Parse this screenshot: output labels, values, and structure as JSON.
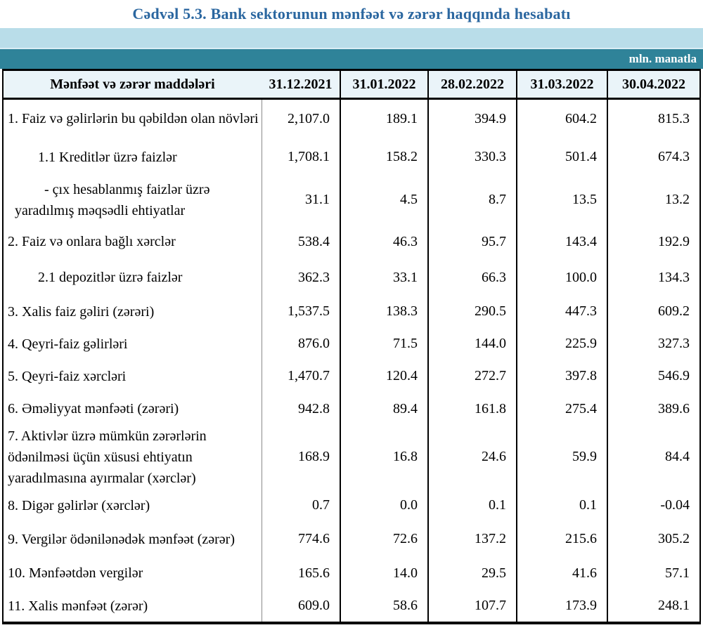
{
  "title": "Cədvəl 5.3. Bank sektorunun mənfəət və zərər haqqında hesabatı",
  "unit_label": "mln. manatla",
  "colors": {
    "title_blue": "#2b67a0",
    "band_light_blue": "#b9dde9",
    "band_teal": "#2f8399",
    "header_row_bg": "#eaf4f9"
  },
  "table": {
    "columns": [
      "Mənfəət və zərər maddələri",
      "31.12.2021",
      "31.01.2022",
      "28.02.2022",
      "31.03.2022",
      "30.04.2022"
    ],
    "rows": [
      {
        "label": "1. Faiz və gəlirlərin bu qəbildən olan növləri",
        "indent": "none",
        "values": [
          "2,107.0",
          "189.1",
          "394.9",
          "604.2",
          "815.3"
        ]
      },
      {
        "label": "1.1 Kreditlər üzrə faizlər",
        "indent": "sub",
        "values": [
          "1,708.1",
          "158.2",
          "330.3",
          "501.4",
          "674.3"
        ]
      },
      {
        "label": [
          "- çıx hesablanmış faizlər üzrə",
          "yaradılmış məqsədli ehtiyatlar"
        ],
        "indent": "hang",
        "values": [
          "31.1",
          "4.5",
          "8.7",
          "13.5",
          "13.2"
        ]
      },
      {
        "label": "2. Faiz və onlara bağlı xərclər",
        "indent": "none",
        "values": [
          "538.4",
          "46.3",
          "95.7",
          "143.4",
          "192.9"
        ]
      },
      {
        "label": "2.1 depozitlər üzrə faizlər",
        "indent": "sub",
        "values": [
          "362.3",
          "33.1",
          "66.3",
          "100.0",
          "134.3"
        ]
      },
      {
        "label": "3. Xalis faiz gəliri (zərəri)",
        "indent": "none",
        "values": [
          "1,537.5",
          "138.3",
          "290.5",
          "447.3",
          "609.2"
        ]
      },
      {
        "label": "4. Qeyri-faiz gəlirləri",
        "indent": "none",
        "values": [
          "876.0",
          "71.5",
          "144.0",
          "225.9",
          "327.3"
        ]
      },
      {
        "label": "5. Qeyri-faiz xərcləri",
        "indent": "none",
        "values": [
          "1,470.7",
          "120.4",
          "272.7",
          "397.8",
          "546.9"
        ]
      },
      {
        "label": "6. Əməliyyat mənfəəti (zərəri)",
        "indent": "none",
        "values": [
          "942.8",
          "89.4",
          "161.8",
          "275.4",
          "389.6"
        ]
      },
      {
        "label": [
          "7. Aktivlər üzrə mümkün zərərlərin",
          "ödənilməsi üçün xüsusi ehtiyatın",
          "yaradılmasına ayırmalar (xərclər)"
        ],
        "indent": "none",
        "values": [
          "168.9",
          "16.8",
          "24.6",
          "59.9",
          "84.4"
        ]
      },
      {
        "label": "8. Digər gəlirlər (xərclər)",
        "indent": "none",
        "values": [
          "0.7",
          "0.0",
          "0.1",
          "0.1",
          "-0.04"
        ]
      },
      {
        "label": "9. Vergilər ödənilənədək mənfəət (zərər)",
        "indent": "none",
        "values": [
          "774.6",
          "72.6",
          "137.2",
          "215.6",
          "305.2"
        ]
      },
      {
        "label": "10. Mənfəətdən vergilər",
        "indent": "none",
        "values": [
          "165.6",
          "14.0",
          "29.5",
          "41.6",
          "57.1"
        ]
      },
      {
        "label": "11. Xalis mənfəət (zərər)",
        "indent": "none",
        "values": [
          "609.0",
          "58.6",
          "107.7",
          "173.9",
          "248.1"
        ]
      }
    ]
  },
  "chart_data": {
    "type": "table",
    "title": "Cədvəl 5.3. Bank sektorunun mənfəət və zərər haqqında hesabatı",
    "unit": "mln. manatla",
    "categories": [
      "31.12.2021",
      "31.01.2022",
      "28.02.2022",
      "31.03.2022",
      "30.04.2022"
    ],
    "series": [
      {
        "name": "1. Faiz və gəlirlərin bu qəbildən olan növləri",
        "values": [
          2107.0,
          189.1,
          394.9,
          604.2,
          815.3
        ]
      },
      {
        "name": "1.1 Kreditlər üzrə faizlər",
        "values": [
          1708.1,
          158.2,
          330.3,
          501.4,
          674.3
        ]
      },
      {
        "name": "- çıx hesablanmış faizlər üzrə yaradılmış məqsədli ehtiyatlar",
        "values": [
          31.1,
          4.5,
          8.7,
          13.5,
          13.2
        ]
      },
      {
        "name": "2. Faiz və onlara bağlı xərclər",
        "values": [
          538.4,
          46.3,
          95.7,
          143.4,
          192.9
        ]
      },
      {
        "name": "2.1 depozitlər üzrə faizlər",
        "values": [
          362.3,
          33.1,
          66.3,
          100.0,
          134.3
        ]
      },
      {
        "name": "3. Xalis faiz gəliri (zərəri)",
        "values": [
          1537.5,
          138.3,
          290.5,
          447.3,
          609.2
        ]
      },
      {
        "name": "4. Qeyri-faiz gəlirləri",
        "values": [
          876.0,
          71.5,
          144.0,
          225.9,
          327.3
        ]
      },
      {
        "name": "5. Qeyri-faiz xərcləri",
        "values": [
          1470.7,
          120.4,
          272.7,
          397.8,
          546.9
        ]
      },
      {
        "name": "6. Əməliyyat mənfəəti (zərəri)",
        "values": [
          942.8,
          89.4,
          161.8,
          275.4,
          389.6
        ]
      },
      {
        "name": "7. Aktivlər üzrə mümkün zərərlərin ödənilməsi üçün xüsusi ehtiyatın yaradılmasına ayırmalar (xərclər)",
        "values": [
          168.9,
          16.8,
          24.6,
          59.9,
          84.4
        ]
      },
      {
        "name": "8. Digər gəlirlər (xərclər)",
        "values": [
          0.7,
          0.0,
          0.1,
          0.1,
          -0.04
        ]
      },
      {
        "name": "9. Vergilər ödənilənədək mənfəət (zərər)",
        "values": [
          774.6,
          72.6,
          137.2,
          215.6,
          305.2
        ]
      },
      {
        "name": "10. Mənfəətdən vergilər",
        "values": [
          165.6,
          14.0,
          29.5,
          41.6,
          57.1
        ]
      },
      {
        "name": "11. Xalis mənfəət (zərər)",
        "values": [
          609.0,
          58.6,
          107.7,
          173.9,
          248.1
        ]
      }
    ]
  }
}
